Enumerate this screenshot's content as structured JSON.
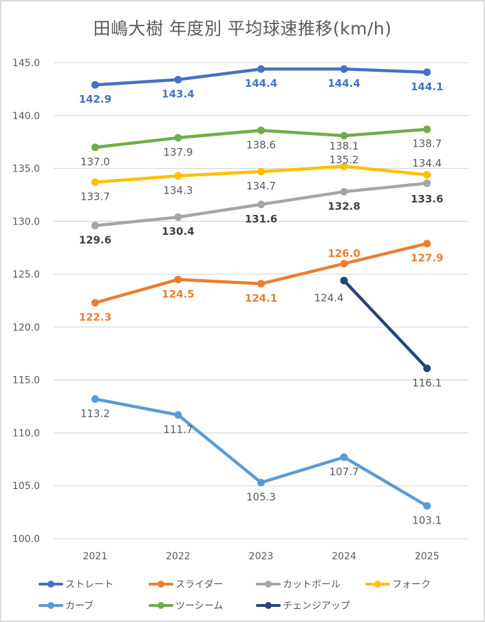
{
  "chart_data": {
    "type": "line",
    "title": "田嶋大樹 年度別 平均球速推移(km/h)",
    "xlabel": "",
    "ylabel": "",
    "categories": [
      "2021",
      "2022",
      "2023",
      "2024",
      "2025"
    ],
    "ylim": [
      100.0,
      145.0
    ],
    "yticks": [
      "100.0",
      "105.0",
      "110.0",
      "115.0",
      "120.0",
      "125.0",
      "130.0",
      "135.0",
      "140.0",
      "145.0"
    ],
    "grid": true,
    "legend_position": "bottom",
    "series": [
      {
        "name": "ストレート",
        "color": "#4472c4",
        "label_color": "#4472c4",
        "label_bold": true,
        "label_pos": "below",
        "values": [
          142.9,
          143.4,
          144.4,
          144.4,
          144.1
        ]
      },
      {
        "name": "スライダー",
        "color": "#ed7d31",
        "label_color": "#ed7d31",
        "label_bold": true,
        "label_pos": "below",
        "values": [
          122.3,
          124.5,
          124.1,
          126.0,
          127.9
        ]
      },
      {
        "name": "カットボール",
        "color": "#a5a5a5",
        "label_color": "#404040",
        "label_bold": true,
        "label_pos": "below",
        "values": [
          129.6,
          130.4,
          131.6,
          132.8,
          133.6
        ]
      },
      {
        "name": "フォーク",
        "color": "#ffc000",
        "label_color": "#595959",
        "label_bold": false,
        "label_pos": "below",
        "values": [
          133.7,
          134.3,
          134.7,
          135.2,
          134.4
        ]
      },
      {
        "name": "カーブ",
        "color": "#5b9bd5",
        "label_color": "#595959",
        "label_bold": false,
        "label_pos": "below",
        "values": [
          113.2,
          111.7,
          105.3,
          107.7,
          103.1
        ]
      },
      {
        "name": "ツーシーム",
        "color": "#70ad47",
        "label_color": "#595959",
        "label_bold": false,
        "label_pos": "below",
        "values": [
          137.0,
          137.9,
          138.6,
          138.1,
          138.7
        ]
      },
      {
        "name": "チェンジアップ",
        "color": "#264478",
        "label_color": "#595959",
        "label_bold": false,
        "label_pos": "below",
        "values": [
          null,
          null,
          null,
          124.4,
          116.1
        ]
      }
    ]
  }
}
